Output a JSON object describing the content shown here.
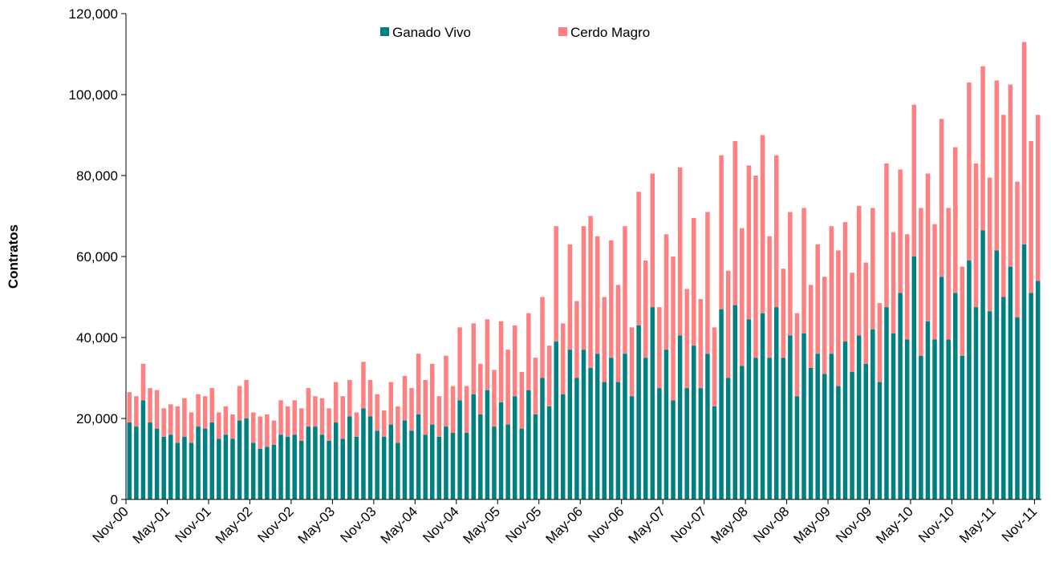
{
  "chart_data": {
    "type": "stacked-bar",
    "y_label": "Contratos",
    "categories": [
      "Nov-00",
      null,
      null,
      null,
      null,
      null,
      "May-01",
      null,
      null,
      null,
      null,
      null,
      "Nov-01",
      null,
      null,
      null,
      null,
      null,
      "May-02",
      null,
      null,
      null,
      null,
      null,
      "Nov-02",
      null,
      null,
      null,
      null,
      null,
      "May-03",
      null,
      null,
      null,
      null,
      null,
      "Nov-03",
      null,
      null,
      null,
      null,
      null,
      "May-04",
      null,
      null,
      null,
      null,
      null,
      "Nov-04",
      null,
      null,
      null,
      null,
      null,
      "May-05",
      null,
      null,
      null,
      null,
      null,
      "Nov-05",
      null,
      null,
      null,
      null,
      null,
      "May-06",
      null,
      null,
      null,
      null,
      null,
      "Nov-06",
      null,
      null,
      null,
      null,
      null,
      "May-07",
      null,
      null,
      null,
      null,
      null,
      "Nov-07",
      null,
      null,
      null,
      null,
      null,
      "May-08",
      null,
      null,
      null,
      null,
      null,
      "Nov-08",
      null,
      null,
      null,
      null,
      null,
      "May-09",
      null,
      null,
      null,
      null,
      null,
      "Nov-09",
      null,
      null,
      null,
      null,
      null,
      "May-10",
      null,
      null,
      null,
      null,
      null,
      "Nov-10",
      null,
      null,
      null,
      null,
      null,
      "May-11",
      null,
      null,
      null,
      null,
      null,
      "Nov-11"
    ],
    "series": [
      {
        "name": "Ganado Vivo",
        "color": "#008080",
        "values": [
          19000,
          18000,
          24500,
          19000,
          17500,
          15500,
          16000,
          14000,
          15500,
          14000,
          18000,
          17500,
          19000,
          15000,
          16000,
          15000,
          19500,
          20000,
          14000,
          12500,
          13000,
          13500,
          16000,
          15500,
          16000,
          14500,
          18000,
          18000,
          16000,
          14500,
          19000,
          15000,
          20500,
          15500,
          22500,
          20500,
          17000,
          15500,
          18500,
          14000,
          19500,
          17000,
          21000,
          16000,
          18500,
          15500,
          18000,
          16500,
          24500,
          16500,
          26000,
          21000,
          27000,
          18000,
          24000,
          18500,
          25500,
          17500,
          27000,
          21000,
          30000,
          23000,
          39000,
          26000,
          37000,
          30000,
          37000,
          32500,
          36000,
          29000,
          35000,
          29000,
          36000,
          25500,
          43000,
          35000,
          47500,
          27500,
          37000,
          24500,
          40500,
          27500,
          38000,
          27500,
          36000,
          23000,
          47000,
          30000,
          48000,
          33000,
          44500,
          35000,
          46000,
          35000,
          47500,
          35000,
          40500,
          25500,
          41000,
          32500,
          36000,
          31000,
          36000,
          28000,
          39000,
          31500,
          40500,
          33500,
          42000,
          29000,
          47500,
          41000,
          51000,
          39500,
          60000,
          35500,
          44000,
          39500,
          55000,
          39500,
          51000,
          35500,
          59000,
          47500,
          66500,
          46500,
          61500,
          50000,
          57500,
          45000,
          63000,
          51000,
          54000
        ]
      },
      {
        "name": "Cerdo Magro",
        "color": "#ff8080",
        "values": [
          7500,
          7500,
          9000,
          8500,
          9500,
          7000,
          7500,
          9000,
          9500,
          7500,
          8000,
          8000,
          8500,
          6500,
          7000,
          6000,
          8500,
          9500,
          7500,
          8000,
          8000,
          6000,
          8500,
          7500,
          8500,
          8000,
          9500,
          7500,
          9000,
          8000,
          10000,
          10500,
          9000,
          6000,
          11500,
          9000,
          9000,
          6500,
          10500,
          9000,
          11000,
          10500,
          15000,
          13500,
          15000,
          10000,
          17500,
          11500,
          18000,
          11500,
          17500,
          12500,
          17500,
          14000,
          20000,
          18500,
          17500,
          14000,
          19000,
          14000,
          20000,
          15000,
          28500,
          17500,
          26000,
          19000,
          30500,
          37500,
          29000,
          21000,
          29000,
          24000,
          31500,
          17000,
          33000,
          24000,
          33000,
          20000,
          28500,
          35500,
          41500,
          24500,
          31500,
          22000,
          35000,
          19500,
          38000,
          26500,
          40500,
          34000,
          38000,
          45000,
          44000,
          30000,
          37500,
          22000,
          30500,
          20500,
          31000,
          20500,
          27000,
          24000,
          31500,
          33500,
          29500,
          24500,
          32000,
          25000,
          30000,
          19500,
          35500,
          25000,
          30500,
          26000,
          37500,
          36500,
          36500,
          28500,
          39000,
          32500,
          36000,
          22000,
          44000,
          35500,
          40500,
          33000,
          42000,
          45000,
          45000,
          33500,
          50000,
          37500,
          41000
        ]
      }
    ],
    "ylim": [
      0,
      120000
    ],
    "yticks": [
      0,
      {
        "value": 20000,
        "label": "20,000"
      },
      {
        "value": 40000,
        "label": "40,000"
      },
      {
        "value": 60000,
        "label": "60,000"
      },
      {
        "value": 80000,
        "label": "80,000"
      },
      {
        "value": 100000,
        "label": "100,000"
      },
      {
        "value": 120000,
        "label": "120,000"
      }
    ],
    "grid": false,
    "legend": "top"
  }
}
